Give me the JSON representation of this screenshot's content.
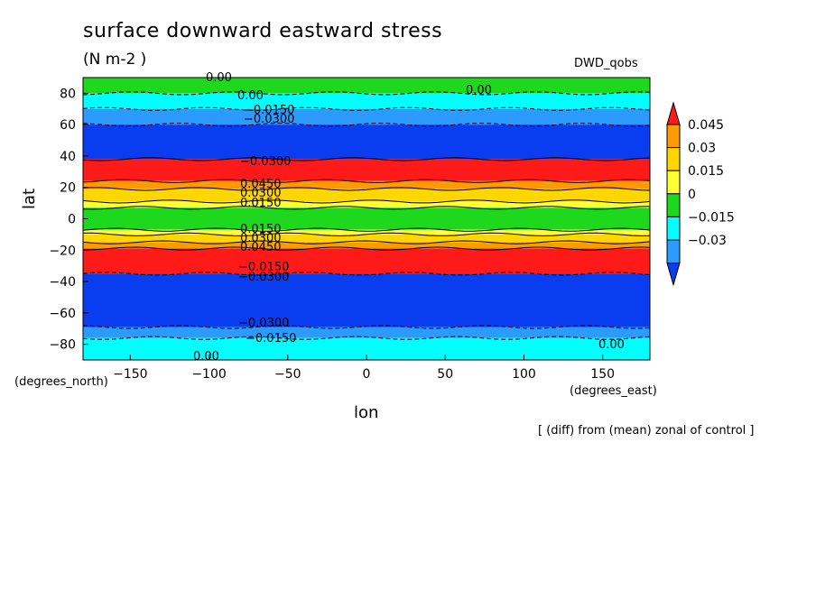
{
  "chart_data": {
    "type": "heatmap",
    "title": "surface downward eastward stress",
    "units": "(N m-2  )",
    "dataset": "DWD_qobs",
    "xlabel": "lon",
    "ylabel": "lat",
    "x_unit_label": "(degrees_east)",
    "y_unit_label": "(degrees_north)",
    "xlim": [
      -180,
      180
    ],
    "ylim": [
      -90,
      90
    ],
    "x_ticks": [
      -150,
      -100,
      -50,
      0,
      50,
      100,
      150
    ],
    "y_ticks": [
      -80,
      -60,
      -40,
      -20,
      0,
      20,
      40,
      60,
      80
    ],
    "footnote": "[ (diff) from (mean) zonal of control ]",
    "colorbar": {
      "labels": [
        "0.045",
        "0.03",
        "0.015",
        "0",
        "-0.015",
        "-0.03"
      ],
      "colors": [
        "#ff1a1a",
        "#ff9a00",
        "#ffd700",
        "#ffff33",
        "#1ed81e",
        "#00ffff",
        "#2c9bff",
        "#0a3cf0"
      ]
    },
    "contour_labels": [
      "0.00",
      "0.00",
      "0.00",
      "-0.0150",
      "-0.0300",
      "-0.0300",
      "0.0450",
      "0.0300",
      "0.0150",
      "0.0150",
      "0.0300",
      "0.0450",
      "-0.0150",
      "-0.0300",
      "-0.0300",
      "-0.0150",
      "0.00",
      "0.00"
    ],
    "bands": [
      {
        "lat_from": 90,
        "lat_to": 80,
        "color": "#1ed81e"
      },
      {
        "lat_from": 80,
        "lat_to": 70,
        "color": "#00ffff"
      },
      {
        "lat_from": 70,
        "lat_to": 60,
        "color": "#2c9bff"
      },
      {
        "lat_from": 60,
        "lat_to": 38,
        "color": "#0a3cf0"
      },
      {
        "lat_from": 38,
        "lat_to": 24,
        "color": "#ff1a1a"
      },
      {
        "lat_from": 24,
        "lat_to": 19,
        "color": "#ff9a00"
      },
      {
        "lat_from": 19,
        "lat_to": 11,
        "color": "#ffd700"
      },
      {
        "lat_from": 11,
        "lat_to": 7,
        "color": "#ffff33"
      },
      {
        "lat_from": 7,
        "lat_to": -7,
        "color": "#1ed81e"
      },
      {
        "lat_from": -7,
        "lat_to": -10,
        "color": "#ffff33"
      },
      {
        "lat_from": -10,
        "lat_to": -15,
        "color": "#ffd700"
      },
      {
        "lat_from": -15,
        "lat_to": -19,
        "color": "#ff9a00"
      },
      {
        "lat_from": -19,
        "lat_to": -35,
        "color": "#ff1a1a"
      },
      {
        "lat_from": -35,
        "lat_to": -69,
        "color": "#0a3cf0"
      },
      {
        "lat_from": -69,
        "lat_to": -76,
        "color": "#2c9bff"
      },
      {
        "lat_from": -76,
        "lat_to": -90,
        "color": "#00ffff"
      }
    ]
  }
}
